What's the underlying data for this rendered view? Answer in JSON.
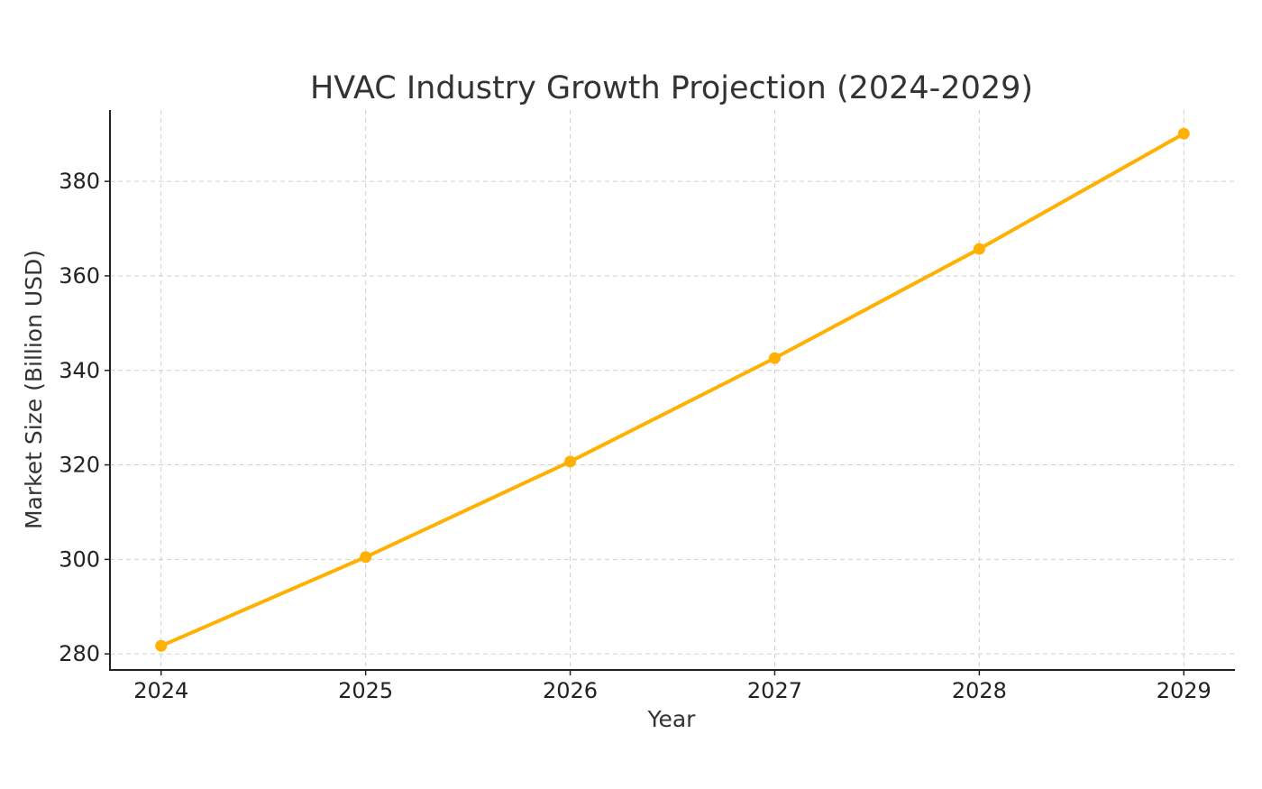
{
  "chart_data": {
    "type": "line",
    "title": "HVAC Industry Growth Projection (2024-2029)",
    "xlabel": "Year",
    "ylabel": "Market Size (Billion USD)",
    "x": [
      2024,
      2025,
      2026,
      2027,
      2028,
      2029
    ],
    "x_tick_labels": [
      "2024",
      "2025",
      "2026",
      "2027",
      "2028",
      "2029"
    ],
    "y_ticks": [
      280,
      300,
      320,
      340,
      360,
      380
    ],
    "y_tick_labels": [
      "280",
      "300",
      "320",
      "340",
      "360",
      "380"
    ],
    "series": [
      {
        "values": [
          281.7,
          300.5,
          320.7,
          342.6,
          365.7,
          390.1
        ],
        "color": "#FFB000"
      }
    ],
    "xlim": [
      2023.75,
      2029.25
    ],
    "ylim": [
      276.6,
      395.1
    ],
    "grid": true,
    "marker": "circle"
  }
}
